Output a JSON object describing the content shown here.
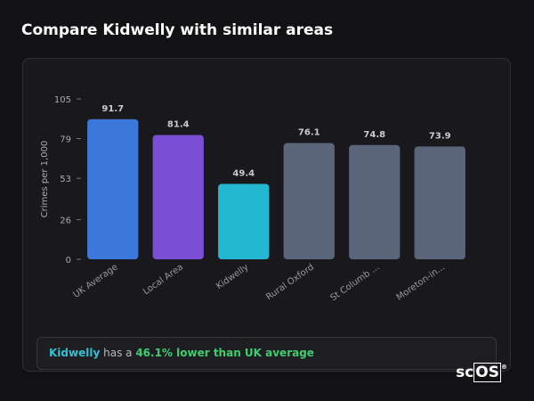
{
  "chart_data": {
    "type": "bar",
    "title": "Compare Kidwelly with similar areas",
    "y_label": "Crimes per 1,000",
    "categories": [
      "UK Average",
      "Local Area",
      "Kidwelly",
      "Rural Oxford",
      "St Columb ...",
      "Moreton-in..."
    ],
    "values": [
      91.7,
      81.4,
      49.4,
      76.1,
      74.8,
      73.9
    ],
    "colors": [
      "#3b78d9",
      "#7a4fd6",
      "#22b8d1",
      "#5b6579",
      "#5b6579",
      "#5b6579"
    ],
    "ylim": [
      0,
      105
    ],
    "yticks": [
      0,
      26,
      53,
      79,
      105
    ]
  },
  "summary": {
    "place": "Kidwelly",
    "middle": "has a",
    "comparison": "46.1% lower than UK average"
  },
  "logo": {
    "prefix": "sc",
    "boxed": "OS",
    "mark": "®"
  }
}
